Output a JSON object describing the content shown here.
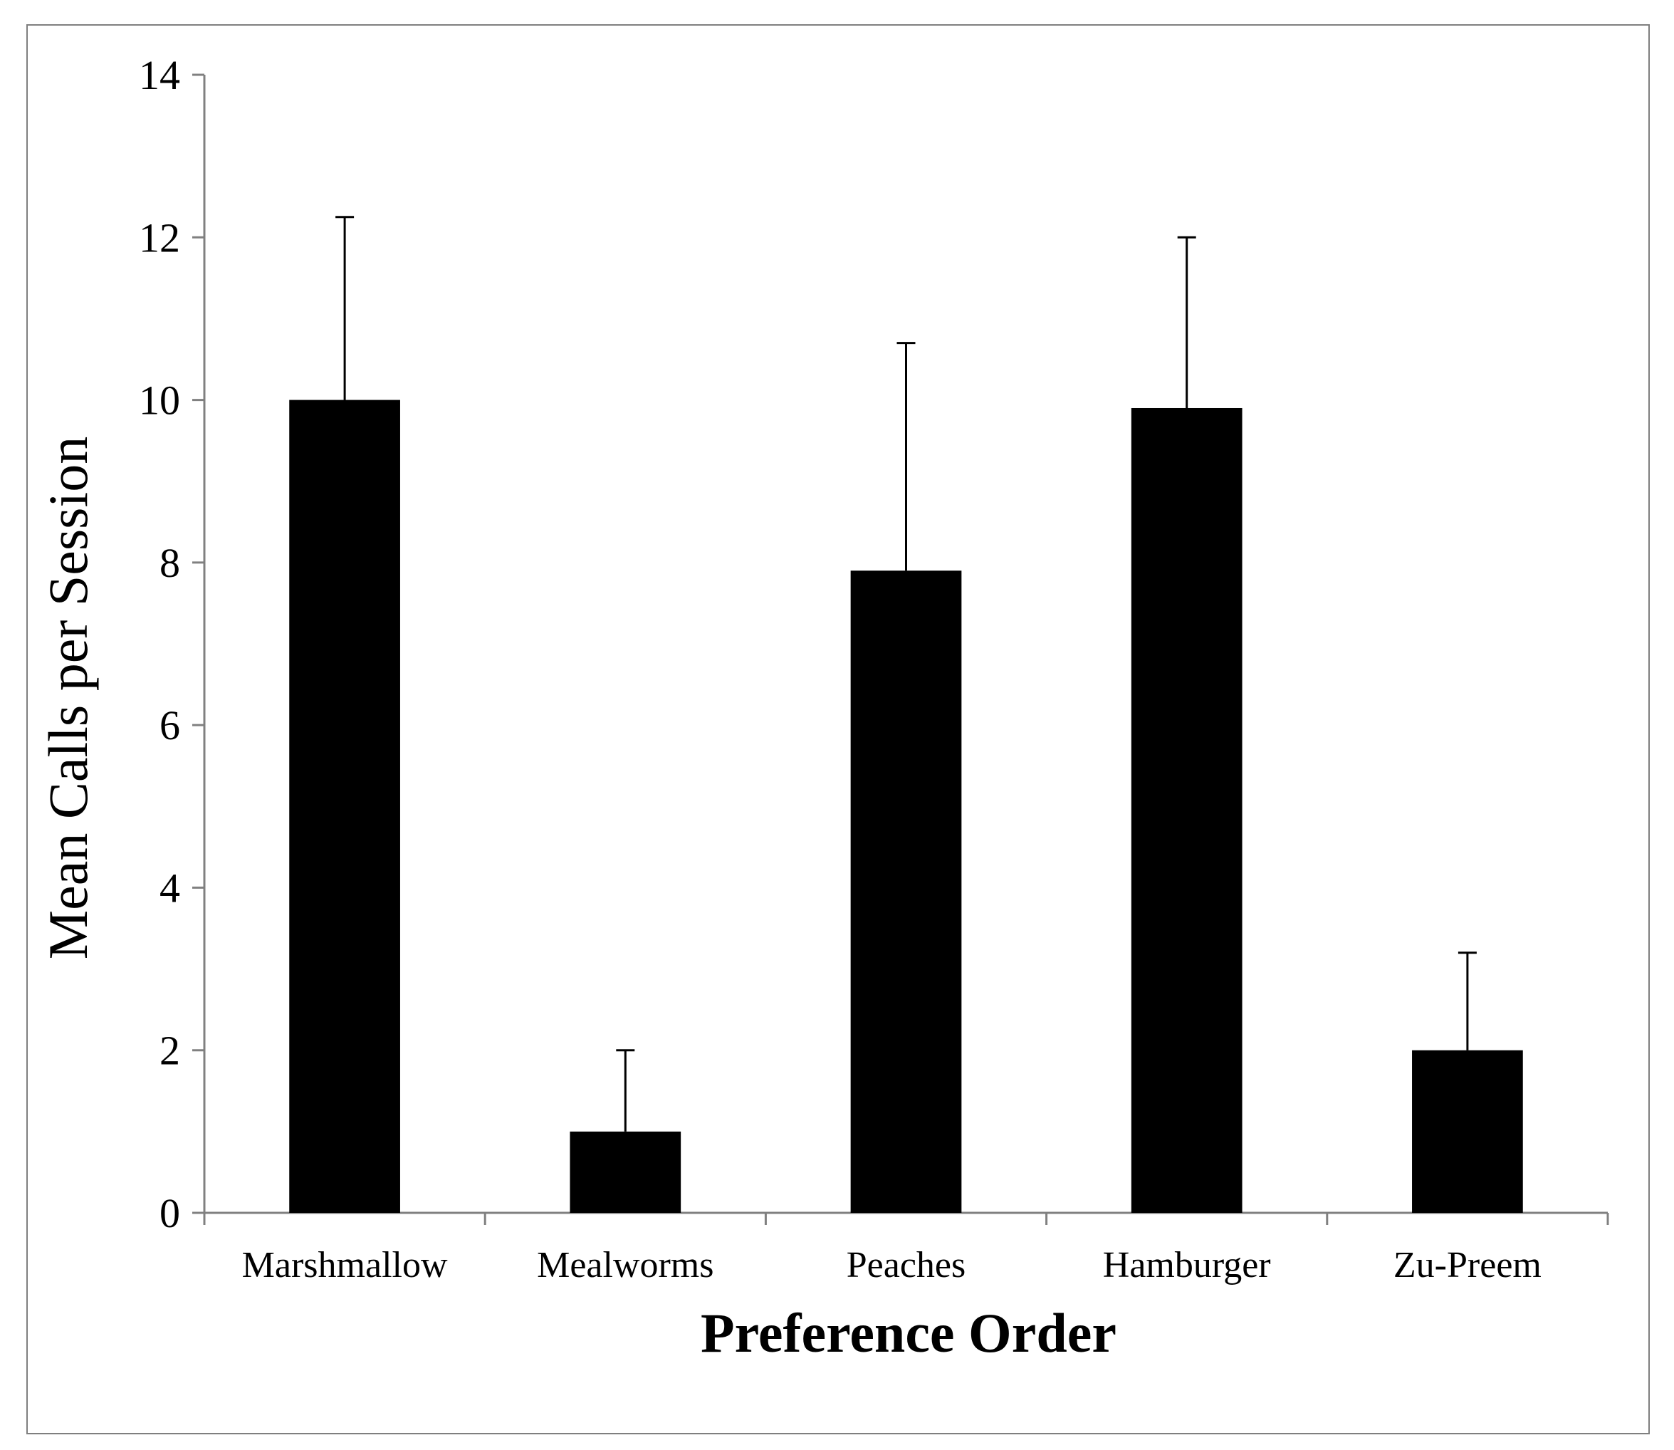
{
  "chart_data": {
    "type": "bar",
    "title": "",
    "categories": [
      "Marshmallow",
      "Mealworms",
      "Peaches",
      "Hamburger",
      "Zu-Preem"
    ],
    "series": [
      {
        "values": [
          10,
          1,
          7.9,
          9.9,
          2
        ],
        "error_upper": [
          2.25,
          1,
          2.8,
          2.1,
          1.2
        ]
      }
    ],
    "xlabel": "Preference Order",
    "ylabel": "Mean Calls per Session",
    "ylim": [
      0,
      14
    ],
    "yticks": [
      0,
      2,
      4,
      6,
      8,
      10,
      12,
      14
    ],
    "grid": false,
    "legend": "none",
    "bar_color": "#000000",
    "axis_color": "#808080"
  }
}
